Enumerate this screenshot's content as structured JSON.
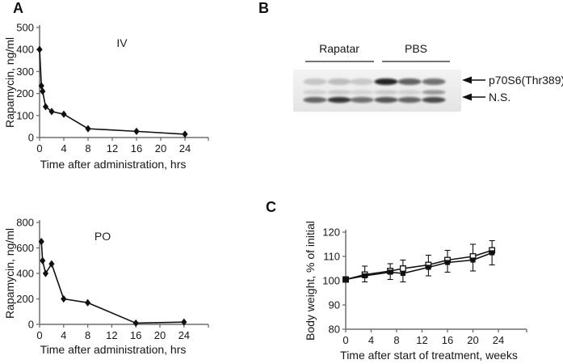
{
  "panels": {
    "a": "A",
    "b": "B",
    "c": "C"
  },
  "colors": {
    "axis": "#6e6e6e",
    "line": "#111111",
    "text": "#161616",
    "blot_bg": "#ebebeb"
  },
  "chart_data": [
    {
      "id": "iv",
      "type": "line",
      "annotation": "IV",
      "xlabel": "Time after administration, hrs",
      "ylabel": "Rapamycin, ng/ml",
      "xlim": [
        0,
        24
      ],
      "ylim": [
        0,
        500
      ],
      "xticks": [
        0,
        4,
        8,
        12,
        16,
        20,
        24
      ],
      "yticks": [
        0,
        100,
        200,
        300,
        400,
        500
      ],
      "grid": false,
      "legend": "none",
      "series": [
        {
          "name": "filled diamonds",
          "marker": "diamond",
          "x": [
            0,
            0.3,
            0.5,
            1,
            2,
            4,
            8,
            16,
            24
          ],
          "y": [
            400,
            235,
            210,
            140,
            118,
            106,
            40,
            28,
            15
          ]
        }
      ]
    },
    {
      "id": "po",
      "type": "line",
      "annotation": "PO",
      "xlabel": "Time after administration, hrs",
      "ylabel": "Rapamycin, ng/ml",
      "xlim": [
        0,
        24
      ],
      "ylim": [
        0,
        800
      ],
      "xticks": [
        0,
        4,
        8,
        12,
        16,
        20,
        24
      ],
      "yticks": [
        0,
        200,
        400,
        600,
        800
      ],
      "grid": false,
      "legend": "none",
      "series": [
        {
          "name": "filled diamonds",
          "marker": "diamond",
          "x": [
            0.3,
            0.5,
            1,
            2,
            4,
            8,
            16,
            24
          ],
          "y": [
            650,
            500,
            400,
            475,
            200,
            170,
            10,
            18
          ]
        }
      ]
    },
    {
      "id": "bw",
      "type": "line",
      "annotation": "",
      "xlabel": "Time after start of treatment, weeks",
      "ylabel": "Body weight, % of initial",
      "xlim": [
        0,
        24
      ],
      "ylim": [
        80,
        120
      ],
      "xticks": [
        0,
        4,
        8,
        12,
        16,
        20,
        24
      ],
      "yticks": [
        80,
        90,
        100,
        110,
        120
      ],
      "grid": false,
      "legend": "none",
      "series": [
        {
          "name": "open squares",
          "marker": "square-open",
          "x": [
            0,
            3,
            7,
            9,
            13,
            16,
            20,
            23
          ],
          "y": [
            100.5,
            102.5,
            104,
            105,
            106.5,
            108.5,
            110,
            112.5
          ],
          "err_up": [
            0,
            3.5,
            3,
            3.5,
            4,
            4,
            5,
            4
          ]
        },
        {
          "name": "filled squares",
          "marker": "square-filled",
          "x": [
            0,
            3,
            7,
            9,
            13,
            16,
            20,
            23
          ],
          "y": [
            100.5,
            102,
            103.5,
            103,
            105.5,
            107.5,
            108.5,
            111.5
          ],
          "err_down": [
            0,
            2.5,
            3,
            3.5,
            3.5,
            4,
            4.5,
            5
          ]
        }
      ]
    }
  ],
  "blot": {
    "group_labels": [
      "Rapatar",
      "PBS"
    ],
    "lanes_per_group": 3,
    "row_labels": [
      "p70S6(Thr389)",
      "N.S."
    ],
    "band_rows": [
      {
        "name": "p70S6(Thr389)",
        "intensities": [
          0.18,
          0.22,
          0.17,
          0.9,
          0.62,
          0.55
        ]
      },
      {
        "name": "faint middle band",
        "intensities": [
          0.12,
          0.15,
          0.1,
          0.15,
          0.12,
          0.38
        ]
      },
      {
        "name": "N.S.",
        "intensities": [
          0.6,
          0.82,
          0.55,
          0.68,
          0.6,
          0.72
        ]
      }
    ]
  }
}
